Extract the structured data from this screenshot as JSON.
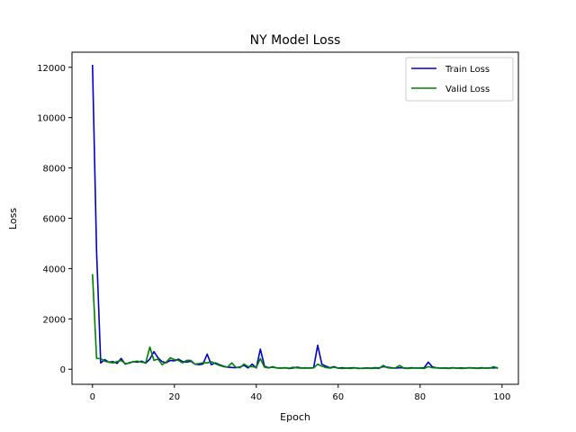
{
  "chart_data": {
    "type": "line",
    "title": "NY Model Loss",
    "xlabel": "Epoch",
    "ylabel": "Loss",
    "xlim": [
      -5,
      104
    ],
    "ylim": [
      -600,
      12600
    ],
    "xticks": [
      0,
      20,
      40,
      60,
      80,
      100
    ],
    "yticks": [
      0,
      2000,
      4000,
      6000,
      8000,
      10000,
      12000
    ],
    "legend_position": "top-right",
    "grid": false,
    "series": [
      {
        "name": "Train Loss",
        "color": "#0000cc",
        "x": [
          0,
          1,
          2,
          3,
          4,
          5,
          6,
          7,
          8,
          9,
          10,
          11,
          12,
          13,
          14,
          15,
          16,
          17,
          18,
          19,
          20,
          21,
          22,
          23,
          24,
          25,
          26,
          27,
          28,
          29,
          30,
          31,
          32,
          33,
          34,
          35,
          36,
          37,
          38,
          39,
          40,
          41,
          42,
          43,
          44,
          45,
          46,
          47,
          48,
          49,
          50,
          51,
          52,
          53,
          54,
          55,
          56,
          57,
          58,
          59,
          60,
          61,
          62,
          63,
          64,
          65,
          66,
          67,
          68,
          69,
          70,
          71,
          72,
          73,
          74,
          75,
          76,
          77,
          78,
          79,
          80,
          81,
          82,
          83,
          84,
          85,
          86,
          87,
          88,
          89,
          90,
          91,
          92,
          93,
          94,
          95,
          96,
          97,
          98,
          99
        ],
        "values": [
          12100,
          4700,
          250,
          380,
          280,
          300,
          230,
          430,
          200,
          260,
          300,
          280,
          320,
          240,
          400,
          700,
          450,
          300,
          260,
          350,
          330,
          400,
          300,
          280,
          320,
          200,
          180,
          210,
          600,
          180,
          250,
          180,
          120,
          80,
          70,
          60,
          90,
          150,
          50,
          200,
          50,
          800,
          120,
          60,
          80,
          50,
          40,
          60,
          30,
          50,
          80,
          50,
          40,
          50,
          60,
          950,
          200,
          120,
          60,
          100,
          40,
          60,
          40,
          50,
          60,
          30,
          40,
          50,
          40,
          60,
          50,
          100,
          80,
          60,
          40,
          60,
          50,
          40,
          60,
          40,
          50,
          60,
          280,
          90,
          60,
          40,
          50,
          40,
          60,
          40,
          50,
          40,
          60,
          50,
          40,
          60,
          40,
          50,
          50,
          60
        ]
      },
      {
        "name": "Valid Loss",
        "color": "#008000",
        "x": [
          0,
          1,
          2,
          3,
          4,
          5,
          6,
          7,
          8,
          9,
          10,
          11,
          12,
          13,
          14,
          15,
          16,
          17,
          18,
          19,
          20,
          21,
          22,
          23,
          24,
          25,
          26,
          27,
          28,
          29,
          30,
          31,
          32,
          33,
          34,
          35,
          36,
          37,
          38,
          39,
          40,
          41,
          42,
          43,
          44,
          45,
          46,
          47,
          48,
          49,
          50,
          51,
          52,
          53,
          54,
          55,
          56,
          57,
          58,
          59,
          60,
          61,
          62,
          63,
          64,
          65,
          66,
          67,
          68,
          69,
          70,
          71,
          72,
          73,
          74,
          75,
          76,
          77,
          78,
          79,
          80,
          81,
          82,
          83,
          84,
          85,
          86,
          87,
          88,
          89,
          90,
          91,
          92,
          93,
          94,
          95,
          96,
          97,
          98,
          99
        ],
        "values": [
          3780,
          430,
          420,
          320,
          280,
          250,
          300,
          350,
          220,
          240,
          300,
          320,
          280,
          250,
          880,
          350,
          400,
          180,
          280,
          450,
          380,
          350,
          250,
          350,
          350,
          200,
          220,
          260,
          250,
          300,
          220,
          150,
          100,
          80,
          250,
          80,
          60,
          200,
          100,
          100,
          80,
          420,
          80,
          50,
          100,
          50,
          40,
          50,
          40,
          80,
          50,
          40,
          60,
          40,
          50,
          200,
          120,
          70,
          40,
          80,
          40,
          30,
          40,
          30,
          50,
          40,
          30,
          40,
          30,
          40,
          30,
          150,
          60,
          40,
          50,
          150,
          40,
          30,
          40,
          50,
          40,
          30,
          100,
          60,
          50,
          40,
          40,
          30,
          50,
          40,
          30,
          40,
          50,
          40,
          30,
          40,
          50,
          40,
          100,
          30
        ]
      }
    ]
  }
}
